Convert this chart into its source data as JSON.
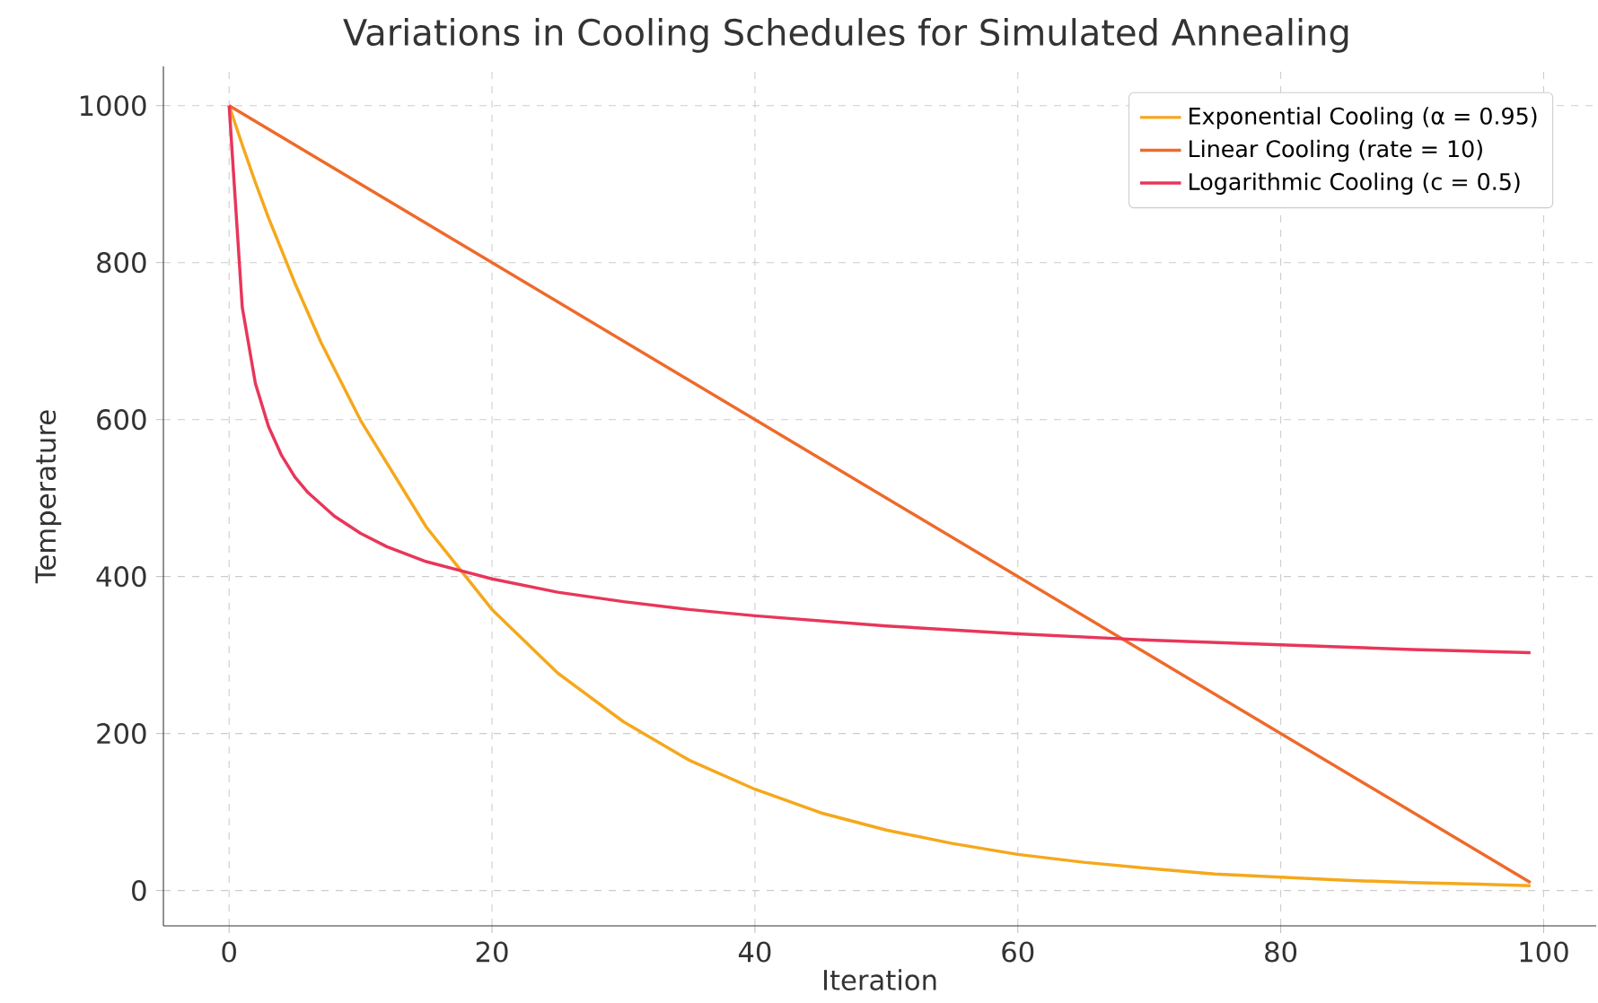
{
  "chart_data": {
    "type": "line",
    "title": "Variations in Cooling Schedules for Simulated Annealing",
    "xlabel": "Iteration",
    "ylabel": "Temperature",
    "xlim": [
      -5,
      104
    ],
    "ylim": [
      -45,
      1050
    ],
    "xticks": [
      0,
      20,
      40,
      60,
      80,
      100
    ],
    "yticks": [
      0,
      200,
      400,
      600,
      800,
      1000
    ],
    "grid": true,
    "legend": "top right",
    "marker": "none",
    "line_style": "solid",
    "series": [
      {
        "name": "Exponential Cooling (α = 0.95)",
        "color": "#f5a81c",
        "x": [
          0,
          1,
          2,
          3,
          5,
          7,
          10,
          15,
          20,
          25,
          30,
          35,
          40,
          45,
          50,
          55,
          60,
          65,
          70,
          75,
          80,
          85,
          90,
          95,
          99
        ],
        "values": [
          1000,
          950,
          902,
          857,
          774,
          698,
          599,
          463,
          358,
          277,
          215,
          166,
          129,
          99,
          77,
          60,
          46,
          36,
          28,
          21,
          17,
          13,
          10,
          8,
          6
        ]
      },
      {
        "name": "Linear Cooling (rate = 10)",
        "color": "#ee6a2a",
        "x": [
          0,
          99
        ],
        "values": [
          1000,
          10
        ]
      },
      {
        "name": "Logarithmic Cooling (c = 0.5)",
        "color": "#e8365a",
        "x": [
          0,
          1,
          2,
          3,
          4,
          5,
          6,
          8,
          10,
          12,
          15,
          20,
          25,
          30,
          35,
          40,
          50,
          60,
          70,
          80,
          90,
          99
        ],
        "values": [
          1000,
          743,
          646,
          591,
          554,
          527,
          507,
          477,
          455,
          438,
          419,
          397,
          380,
          368,
          358,
          350,
          337,
          327,
          319,
          313,
          307,
          303
        ]
      }
    ]
  }
}
